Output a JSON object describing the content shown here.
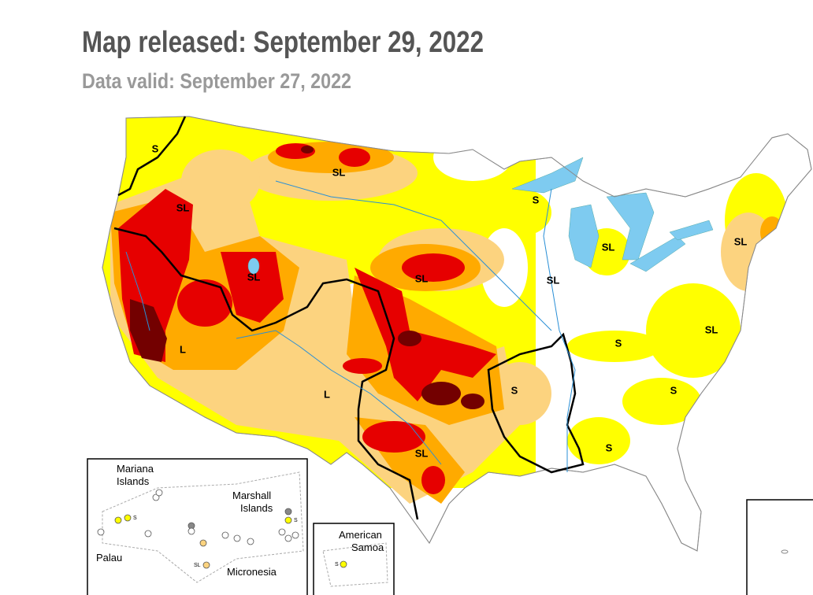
{
  "header": {
    "title": "Map released: September 29, 2022",
    "subtitle": "Data valid: September 27, 2022"
  },
  "map": {
    "impact_labels": [
      "S",
      "SL",
      "SL",
      "SL",
      "L",
      "SL",
      "L",
      "SL",
      "S",
      "SL",
      "SL",
      "SL",
      "SL",
      "S",
      "S",
      "S",
      "S"
    ]
  },
  "pacific_inset": {
    "mariana": [
      "Mariana",
      "Islands"
    ],
    "marshall": [
      "Marshall",
      "Islands"
    ],
    "palau": "Palau",
    "micronesia": "Micronesia",
    "dot_labels": [
      "S",
      "S",
      "SL"
    ]
  },
  "samoa_inset": {
    "name": [
      "American",
      "Samoa"
    ],
    "dot_label": "S"
  }
}
